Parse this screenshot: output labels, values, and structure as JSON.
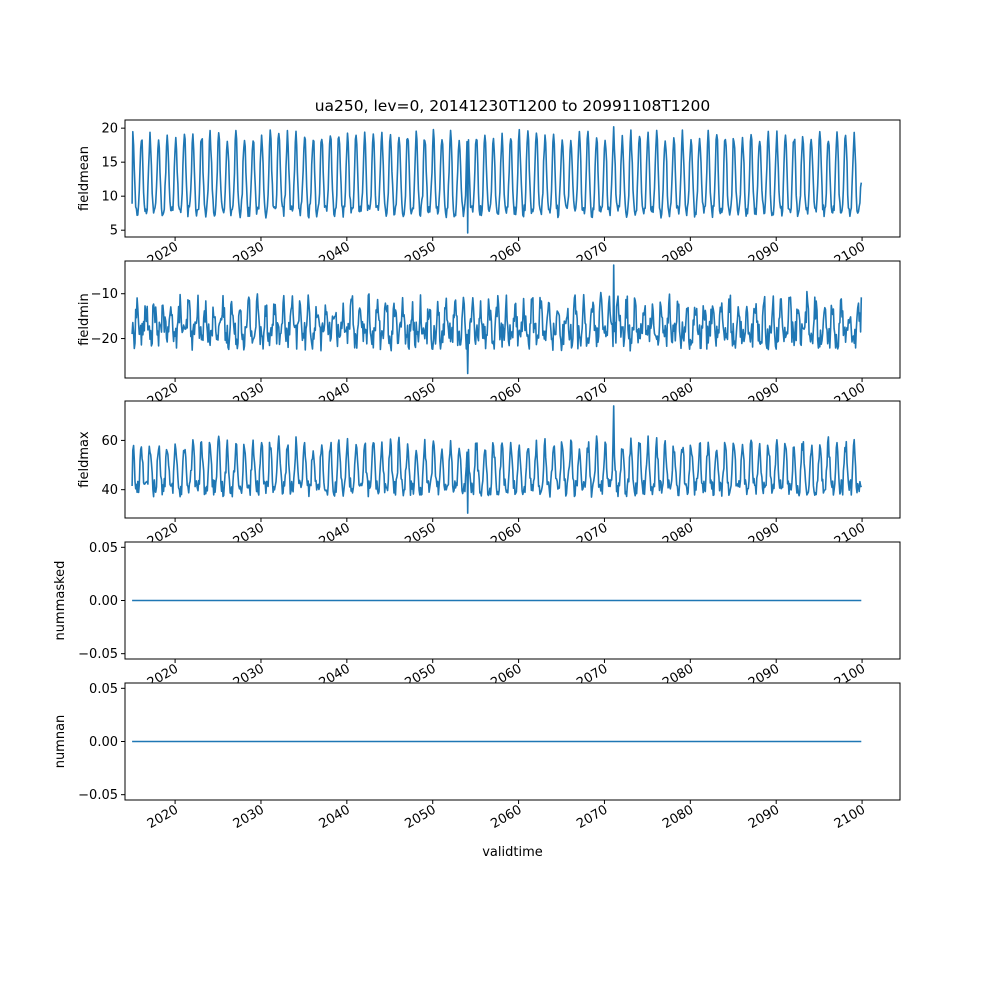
{
  "chart_data": {
    "type": "line",
    "title": "ua250, lev=0, 20141230T1200 to 20991108T1200",
    "xlabel": "validtime",
    "x_start_month": "2014-12",
    "x_end_month": "2099-11",
    "xlim": [
      "2014-03-01",
      "2104-06-01"
    ],
    "x_ticks": [
      2020,
      2030,
      2040,
      2050,
      2060,
      2070,
      2080,
      2090,
      2100
    ],
    "x_tick_labels": [
      "2020",
      "2030",
      "2040",
      "2050",
      "2060",
      "2070",
      "2080",
      "2090",
      "2100"
    ],
    "line_color": "#1f77b4",
    "grid": false,
    "panels": [
      {
        "ylabel": "fieldmean",
        "ylim": [
          4.0,
          21.2
        ],
        "y_ticks": [
          5,
          10,
          15,
          20
        ],
        "y_tick_labels": [
          "5",
          "10",
          "15",
          "20"
        ],
        "signal": {
          "mean": 12.1,
          "amp": 5.6,
          "amp2": 1.2,
          "noise": 0.9,
          "phase": 0.0
        },
        "first_value": 8.9,
        "last_value": 12.0,
        "max_value": 20.2,
        "min_value": 4.6
      },
      {
        "ylabel": "fieldmin",
        "ylim": [
          -28.8,
          -2.7
        ],
        "y_ticks": [
          -20,
          -10
        ],
        "y_tick_labels": [
          "−20",
          "−10"
        ],
        "signal": {
          "mean": -17.0,
          "amp": 3.5,
          "amp2": 1.0,
          "noise": 3.2,
          "phase": 3.14159
        },
        "first_value": -19.0,
        "last_value": -10.8,
        "max_value": -3.6,
        "min_value": -27.8
      },
      {
        "ylabel": "fieldmax",
        "ylim": [
          28.5,
          76.0
        ],
        "y_ticks": [
          40,
          60
        ],
        "y_tick_labels": [
          "40",
          "60"
        ],
        "signal": {
          "mean": 47.0,
          "amp": 9.0,
          "amp2": 2.5,
          "noise": 3.5,
          "phase": 0.0
        },
        "first_value": 41.5,
        "last_value": 41.0,
        "max_value": 74.0,
        "min_value": 30.5
      },
      {
        "ylabel": "nummasked",
        "ylim": [
          -0.055,
          0.055
        ],
        "y_ticks": [
          -0.05,
          0.0,
          0.05
        ],
        "y_tick_labels": [
          "−0.05",
          "0.00",
          "0.05"
        ],
        "constant": 0.0
      },
      {
        "ylabel": "numnan",
        "ylim": [
          -0.055,
          0.055
        ],
        "y_ticks": [
          -0.05,
          0.0,
          0.05
        ],
        "y_tick_labels": [
          "−0.05",
          "0.00",
          "0.05"
        ],
        "constant": 0.0
      }
    ]
  }
}
